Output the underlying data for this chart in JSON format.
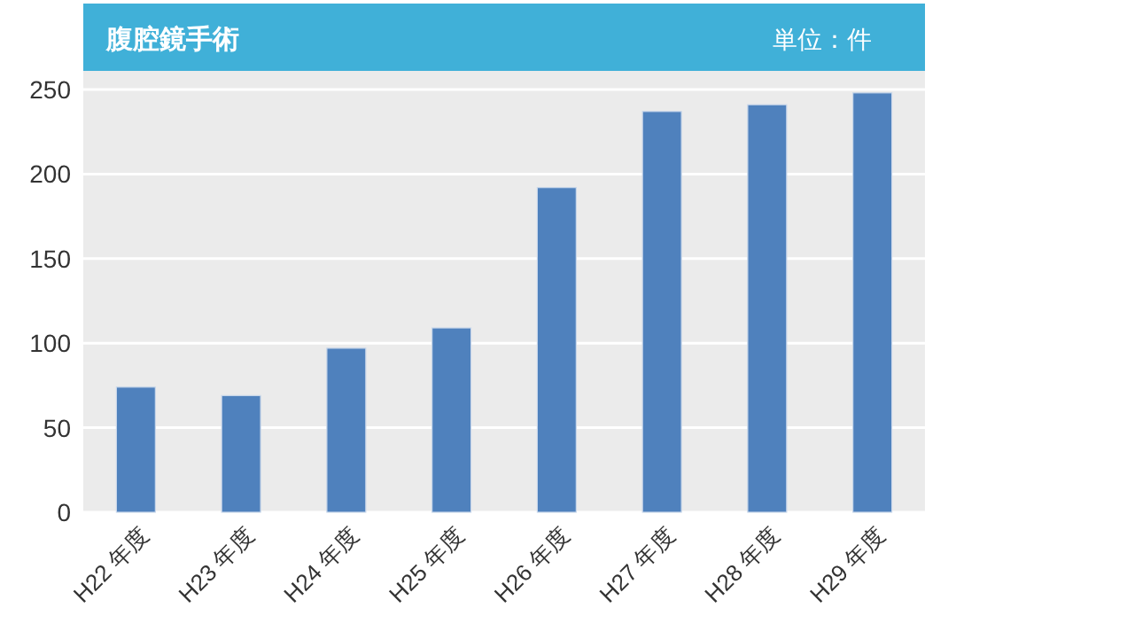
{
  "chart_data": {
    "type": "bar",
    "title": "腹腔鏡手術",
    "annotations": [
      "単位：件"
    ],
    "categories": [
      "H22 年度",
      "H23 年度",
      "H24 年度",
      "H25 年度",
      "H26 年度",
      "H27 年度",
      "H28 年度",
      "H29 年度"
    ],
    "values": [
      74,
      69,
      97,
      109,
      192,
      237,
      241,
      248
    ],
    "color": "#4f81bd",
    "ylim": [
      0,
      261
    ],
    "yticks": [
      0,
      50,
      100,
      150,
      200,
      250
    ],
    "grid": "y"
  }
}
